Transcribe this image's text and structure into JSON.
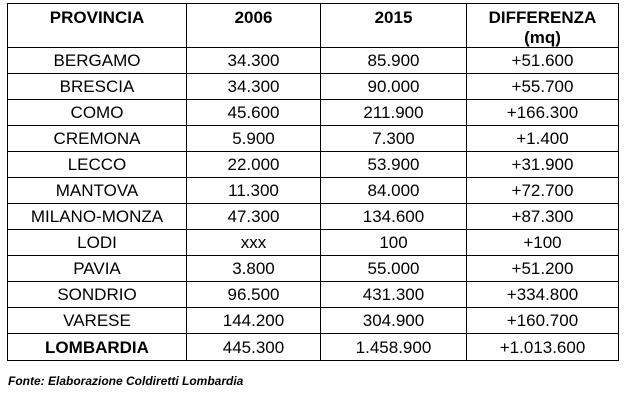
{
  "table": {
    "headers": [
      "PROVINCIA",
      "2006",
      "2015",
      "DIFFERENZA",
      "(mq)"
    ],
    "rows": [
      [
        "BERGAMO",
        "34.300",
        "85.900",
        "+51.600"
      ],
      [
        "BRESCIA",
        "34.300",
        "90.000",
        "+55.700"
      ],
      [
        "COMO",
        "45.600",
        "211.900",
        "+166.300"
      ],
      [
        "CREMONA",
        "5.900",
        "7.300",
        "+1.400"
      ],
      [
        "LECCO",
        "22.000",
        "53.900",
        "+31.900"
      ],
      [
        "MANTOVA",
        "11.300",
        "84.000",
        "+72.700"
      ],
      [
        "MILANO-MONZA",
        "47.300",
        "134.600",
        "+87.300"
      ],
      [
        "LODI",
        "xxx",
        "100",
        "+100"
      ],
      [
        "PAVIA",
        "3.800",
        "55.000",
        "+51.200"
      ],
      [
        "SONDRIO",
        "96.500",
        "431.300",
        "+334.800"
      ],
      [
        "VARESE",
        "144.200",
        "304.900",
        "+160.700"
      ]
    ],
    "total": [
      "LOMBARDIA",
      "445.300",
      "1.458.900",
      "+1.013.600"
    ]
  },
  "source": "Fonte: Elaborazione Coldiretti Lombardia"
}
